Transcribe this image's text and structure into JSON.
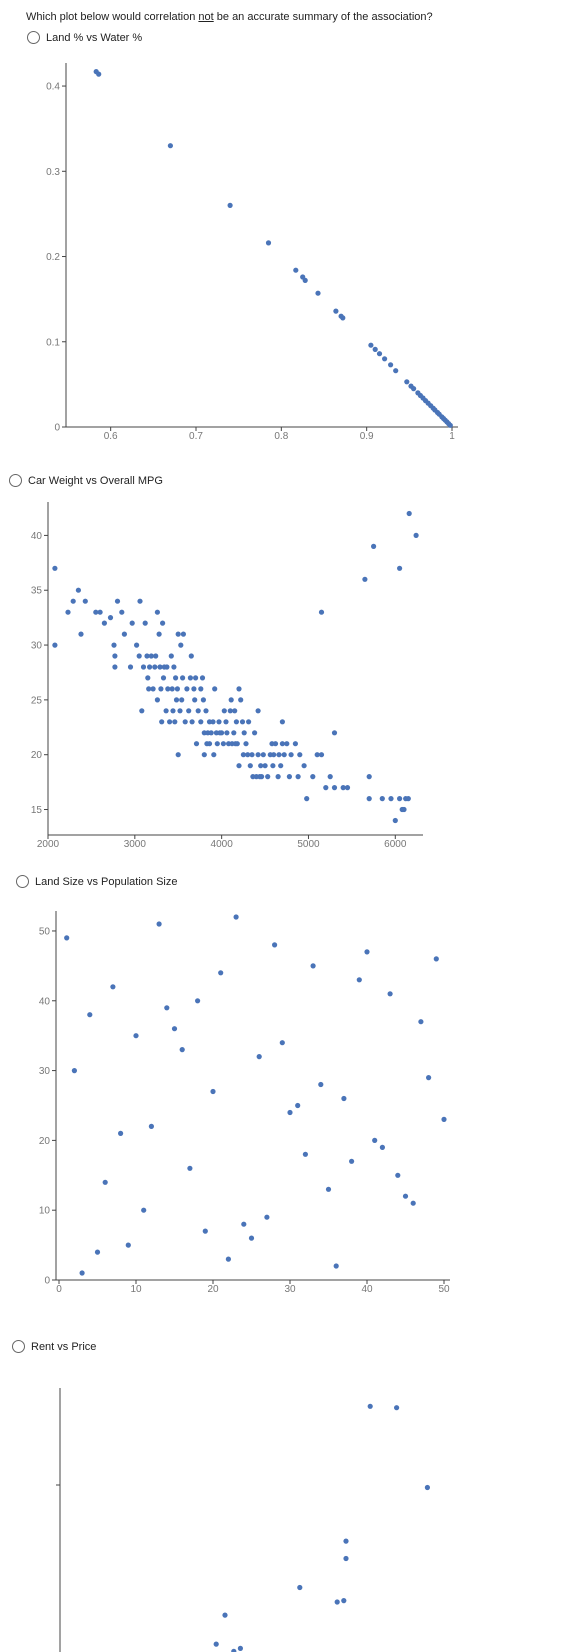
{
  "question": {
    "before": "Which plot below would correlation ",
    "emphasis": "not",
    "after": " be an accurate summary of the association?"
  },
  "options": [
    {
      "label": "Land % vs Water %"
    },
    {
      "label": "Car Weight vs Overall MPG"
    },
    {
      "label": "Land Size vs Population Size"
    },
    {
      "label": "Rent vs Price"
    }
  ],
  "colors": {
    "point": "#4a74b8",
    "axis": "#444444",
    "tick_label": "#777777"
  },
  "chart_data": [
    {
      "type": "scatter",
      "title": "",
      "xlabel": "",
      "ylabel": "",
      "xlim": [
        0.55,
        1.0
      ],
      "ylim": [
        0,
        0.42
      ],
      "xticks": [
        {
          "v": 0.6,
          "l": "0.6"
        },
        {
          "v": 0.7,
          "l": "0.7"
        },
        {
          "v": 0.8,
          "l": "0.8"
        },
        {
          "v": 0.9,
          "l": "0.9"
        },
        {
          "v": 1.0,
          "l": "1"
        }
      ],
      "yticks": [
        {
          "v": 0,
          "l": "0"
        },
        {
          "v": 0.1,
          "l": "0.1"
        },
        {
          "v": 0.2,
          "l": "0.2"
        },
        {
          "v": 0.3,
          "l": "0.3"
        },
        {
          "v": 0.4,
          "l": "0.4"
        }
      ],
      "points": [
        [
          0.583,
          0.417
        ],
        [
          0.586,
          0.414
        ],
        [
          0.67,
          0.33
        ],
        [
          0.74,
          0.26
        ],
        [
          0.785,
          0.216
        ],
        [
          0.817,
          0.184
        ],
        [
          0.825,
          0.176
        ],
        [
          0.828,
          0.172
        ],
        [
          0.843,
          0.157
        ],
        [
          0.864,
          0.136
        ],
        [
          0.87,
          0.13
        ],
        [
          0.872,
          0.128
        ],
        [
          0.905,
          0.096
        ],
        [
          0.91,
          0.091
        ],
        [
          0.915,
          0.086
        ],
        [
          0.921,
          0.08
        ],
        [
          0.928,
          0.073
        ],
        [
          0.934,
          0.066
        ],
        [
          0.947,
          0.053
        ],
        [
          0.952,
          0.048
        ],
        [
          0.955,
          0.045
        ],
        [
          0.96,
          0.04
        ],
        [
          0.963,
          0.037
        ],
        [
          0.966,
          0.034
        ],
        [
          0.969,
          0.031
        ],
        [
          0.972,
          0.028
        ],
        [
          0.975,
          0.025
        ],
        [
          0.978,
          0.022
        ],
        [
          0.98,
          0.02
        ],
        [
          0.983,
          0.017
        ],
        [
          0.985,
          0.015
        ],
        [
          0.988,
          0.012
        ],
        [
          0.99,
          0.01
        ],
        [
          0.992,
          0.008
        ],
        [
          0.994,
          0.006
        ],
        [
          0.996,
          0.004
        ],
        [
          0.998,
          0.002
        ]
      ]
    },
    {
      "type": "scatter",
      "title": "",
      "xlabel": "",
      "ylabel": "",
      "xlim": [
        2000,
        6250
      ],
      "ylim": [
        14.5,
        42.5
      ],
      "xticks": [
        {
          "v": 2000,
          "l": "2000"
        },
        {
          "v": 3000,
          "l": "3000"
        },
        {
          "v": 4000,
          "l": "4000"
        },
        {
          "v": 5000,
          "l": "5000"
        },
        {
          "v": 6000,
          "l": "6000"
        }
      ],
      "yticks": [
        {
          "v": 15,
          "l": "15"
        },
        {
          "v": 20,
          "l": "20"
        },
        {
          "v": 25,
          "l": "25"
        },
        {
          "v": 30,
          "l": "30"
        },
        {
          "v": 35,
          "l": "35"
        },
        {
          "v": 40,
          "l": "40"
        }
      ],
      "points": [
        [
          2080,
          37
        ],
        [
          2080,
          30
        ],
        [
          2230,
          33
        ],
        [
          2290,
          34
        ],
        [
          2350,
          35
        ],
        [
          2380,
          31
        ],
        [
          2430,
          34
        ],
        [
          2550,
          33
        ],
        [
          2600,
          33
        ],
        [
          2650,
          32
        ],
        [
          2720,
          32.5
        ],
        [
          2760,
          30
        ],
        [
          2770,
          29
        ],
        [
          2770,
          28
        ],
        [
          2800,
          34
        ],
        [
          2850,
          33
        ],
        [
          2880,
          31
        ],
        [
          2950,
          28
        ],
        [
          2970,
          32
        ],
        [
          3020,
          30
        ],
        [
          3050,
          29
        ],
        [
          3060,
          34
        ],
        [
          3080,
          24
        ],
        [
          3100,
          28
        ],
        [
          3120,
          32
        ],
        [
          3140,
          29
        ],
        [
          3150,
          27
        ],
        [
          3160,
          26
        ],
        [
          3170,
          28
        ],
        [
          3190,
          29
        ],
        [
          3210,
          26
        ],
        [
          3230,
          28
        ],
        [
          3240,
          29
        ],
        [
          3260,
          33
        ],
        [
          3260,
          25
        ],
        [
          3280,
          31
        ],
        [
          3290,
          28
        ],
        [
          3300,
          26
        ],
        [
          3310,
          23
        ],
        [
          3320,
          32
        ],
        [
          3330,
          27
        ],
        [
          3340,
          28
        ],
        [
          3360,
          24
        ],
        [
          3370,
          28
        ],
        [
          3380,
          26
        ],
        [
          3400,
          23
        ],
        [
          3420,
          29
        ],
        [
          3430,
          26
        ],
        [
          3440,
          24
        ],
        [
          3450,
          28
        ],
        [
          3460,
          23
        ],
        [
          3470,
          27
        ],
        [
          3480,
          25
        ],
        [
          3490,
          26
        ],
        [
          3500,
          20
        ],
        [
          3500,
          31
        ],
        [
          3520,
          24
        ],
        [
          3530,
          30
        ],
        [
          3540,
          25
        ],
        [
          3550,
          27
        ],
        [
          3560,
          31
        ],
        [
          3580,
          23
        ],
        [
          3600,
          26
        ],
        [
          3620,
          24
        ],
        [
          3640,
          27
        ],
        [
          3650,
          29
        ],
        [
          3660,
          23
        ],
        [
          3680,
          26
        ],
        [
          3690,
          25
        ],
        [
          3700,
          27
        ],
        [
          3710,
          21
        ],
        [
          3730,
          24
        ],
        [
          3760,
          26
        ],
        [
          3760,
          23
        ],
        [
          3780,
          27
        ],
        [
          3790,
          25
        ],
        [
          3800,
          22
        ],
        [
          3800,
          20
        ],
        [
          3820,
          24
        ],
        [
          3830,
          21
        ],
        [
          3840,
          22
        ],
        [
          3860,
          21
        ],
        [
          3860,
          23
        ],
        [
          3880,
          22
        ],
        [
          3900,
          23
        ],
        [
          3910,
          20
        ],
        [
          3920,
          26
        ],
        [
          3940,
          22
        ],
        [
          3950,
          21
        ],
        [
          3970,
          23
        ],
        [
          3980,
          22
        ],
        [
          4000,
          22
        ],
        [
          4020,
          21
        ],
        [
          4030,
          24
        ],
        [
          4050,
          23
        ],
        [
          4060,
          22
        ],
        [
          4080,
          21
        ],
        [
          4100,
          24
        ],
        [
          4110,
          25
        ],
        [
          4120,
          21
        ],
        [
          4140,
          22
        ],
        [
          4150,
          24
        ],
        [
          4160,
          21
        ],
        [
          4170,
          23
        ],
        [
          4180,
          21
        ],
        [
          4200,
          26
        ],
        [
          4200,
          19
        ],
        [
          4220,
          25
        ],
        [
          4240,
          23
        ],
        [
          4250,
          20
        ],
        [
          4260,
          22
        ],
        [
          4280,
          21
        ],
        [
          4300,
          20
        ],
        [
          4310,
          23
        ],
        [
          4330,
          19
        ],
        [
          4350,
          20
        ],
        [
          4360,
          18
        ],
        [
          4380,
          22
        ],
        [
          4400,
          18
        ],
        [
          4420,
          24
        ],
        [
          4420,
          20
        ],
        [
          4440,
          18
        ],
        [
          4450,
          19
        ],
        [
          4460,
          18
        ],
        [
          4480,
          20
        ],
        [
          4500,
          19
        ],
        [
          4530,
          18
        ],
        [
          4560,
          20
        ],
        [
          4580,
          21
        ],
        [
          4590,
          19
        ],
        [
          4600,
          20
        ],
        [
          4620,
          21
        ],
        [
          4650,
          18
        ],
        [
          4660,
          20
        ],
        [
          4680,
          19
        ],
        [
          4700,
          23
        ],
        [
          4700,
          21
        ],
        [
          4720,
          20
        ],
        [
          4750,
          21
        ],
        [
          4780,
          18
        ],
        [
          4800,
          20
        ],
        [
          4850,
          21
        ],
        [
          4880,
          18
        ],
        [
          4900,
          20
        ],
        [
          4950,
          19
        ],
        [
          4980,
          16
        ],
        [
          5050,
          18
        ],
        [
          5100,
          20
        ],
        [
          5150,
          33
        ],
        [
          5150,
          20
        ],
        [
          5200,
          17
        ],
        [
          5250,
          18
        ],
        [
          5300,
          22
        ],
        [
          5300,
          17
        ],
        [
          5400,
          17
        ],
        [
          5450,
          17
        ],
        [
          5650,
          36
        ],
        [
          5700,
          16
        ],
        [
          5700,
          18
        ],
        [
          5750,
          39
        ],
        [
          5850,
          16
        ],
        [
          5950,
          16
        ],
        [
          6000,
          14
        ],
        [
          6050,
          37
        ],
        [
          6050,
          16
        ],
        [
          6080,
          15
        ],
        [
          6100,
          15
        ],
        [
          6120,
          16
        ],
        [
          6150,
          16
        ],
        [
          6160,
          42
        ],
        [
          6240,
          40
        ]
      ]
    },
    {
      "type": "scatter",
      "title": "",
      "xlabel": "",
      "ylabel": "",
      "xlim": [
        0,
        50
      ],
      "ylim": [
        0,
        52
      ],
      "xticks": [
        {
          "v": 0,
          "l": "0"
        },
        {
          "v": 10,
          "l": "10"
        },
        {
          "v": 20,
          "l": "20"
        },
        {
          "v": 30,
          "l": "30"
        },
        {
          "v": 40,
          "l": "40"
        },
        {
          "v": 50,
          "l": "50"
        }
      ],
      "yticks": [
        {
          "v": 0,
          "l": "0"
        },
        {
          "v": 10,
          "l": "10"
        },
        {
          "v": 20,
          "l": "20"
        },
        {
          "v": 30,
          "l": "30"
        },
        {
          "v": 40,
          "l": "40"
        },
        {
          "v": 50,
          "l": "50"
        }
      ],
      "points": [
        [
          1,
          49
        ],
        [
          2,
          30
        ],
        [
          3,
          1
        ],
        [
          4,
          38
        ],
        [
          5,
          4
        ],
        [
          6,
          14
        ],
        [
          7,
          42
        ],
        [
          8,
          21
        ],
        [
          9,
          5
        ],
        [
          10,
          35
        ],
        [
          11,
          10
        ],
        [
          12,
          22
        ],
        [
          13,
          51
        ],
        [
          14,
          39
        ],
        [
          15,
          36
        ],
        [
          16,
          33
        ],
        [
          17,
          16
        ],
        [
          18,
          40
        ],
        [
          19,
          7
        ],
        [
          20,
          27
        ],
        [
          21,
          44
        ],
        [
          22,
          3
        ],
        [
          23,
          52
        ],
        [
          24,
          8
        ],
        [
          25,
          6
        ],
        [
          26,
          32
        ],
        [
          27,
          9
        ],
        [
          28,
          48
        ],
        [
          29,
          34
        ],
        [
          30,
          24
        ],
        [
          31,
          25
        ],
        [
          32,
          18
        ],
        [
          33,
          45
        ],
        [
          34,
          28
        ],
        [
          35,
          13
        ],
        [
          36,
          2
        ],
        [
          37,
          26
        ],
        [
          38,
          17
        ],
        [
          39,
          43
        ],
        [
          40,
          47
        ],
        [
          41,
          20
        ],
        [
          42,
          19
        ],
        [
          43,
          41
        ],
        [
          44,
          15
        ],
        [
          45,
          12
        ],
        [
          46,
          11
        ],
        [
          47,
          37
        ],
        [
          48,
          29
        ],
        [
          49,
          46
        ],
        [
          50,
          23
        ]
      ]
    },
    {
      "type": "scatter",
      "title": "",
      "xlabel": "",
      "ylabel": "",
      "xlim": [
        0,
        10
      ],
      "ylim": [
        0,
        10
      ],
      "xticks": [],
      "yticks": [
        {
          "v": 7,
          "l": ""
        }
      ],
      "points": [
        [
          3.0,
          0.15
        ],
        [
          3.4,
          0.05
        ],
        [
          3.55,
          0.55
        ],
        [
          3.75,
          1.55
        ],
        [
          3.95,
          0.3
        ],
        [
          4.1,
          0.4
        ],
        [
          5.45,
          2.5
        ],
        [
          6.3,
          2.0
        ],
        [
          6.45,
          2.05
        ],
        [
          6.5,
          3.5
        ],
        [
          6.5,
          4.1
        ],
        [
          7.05,
          8.75
        ],
        [
          7.65,
          8.7
        ],
        [
          8.35,
          5.95
        ]
      ]
    }
  ]
}
